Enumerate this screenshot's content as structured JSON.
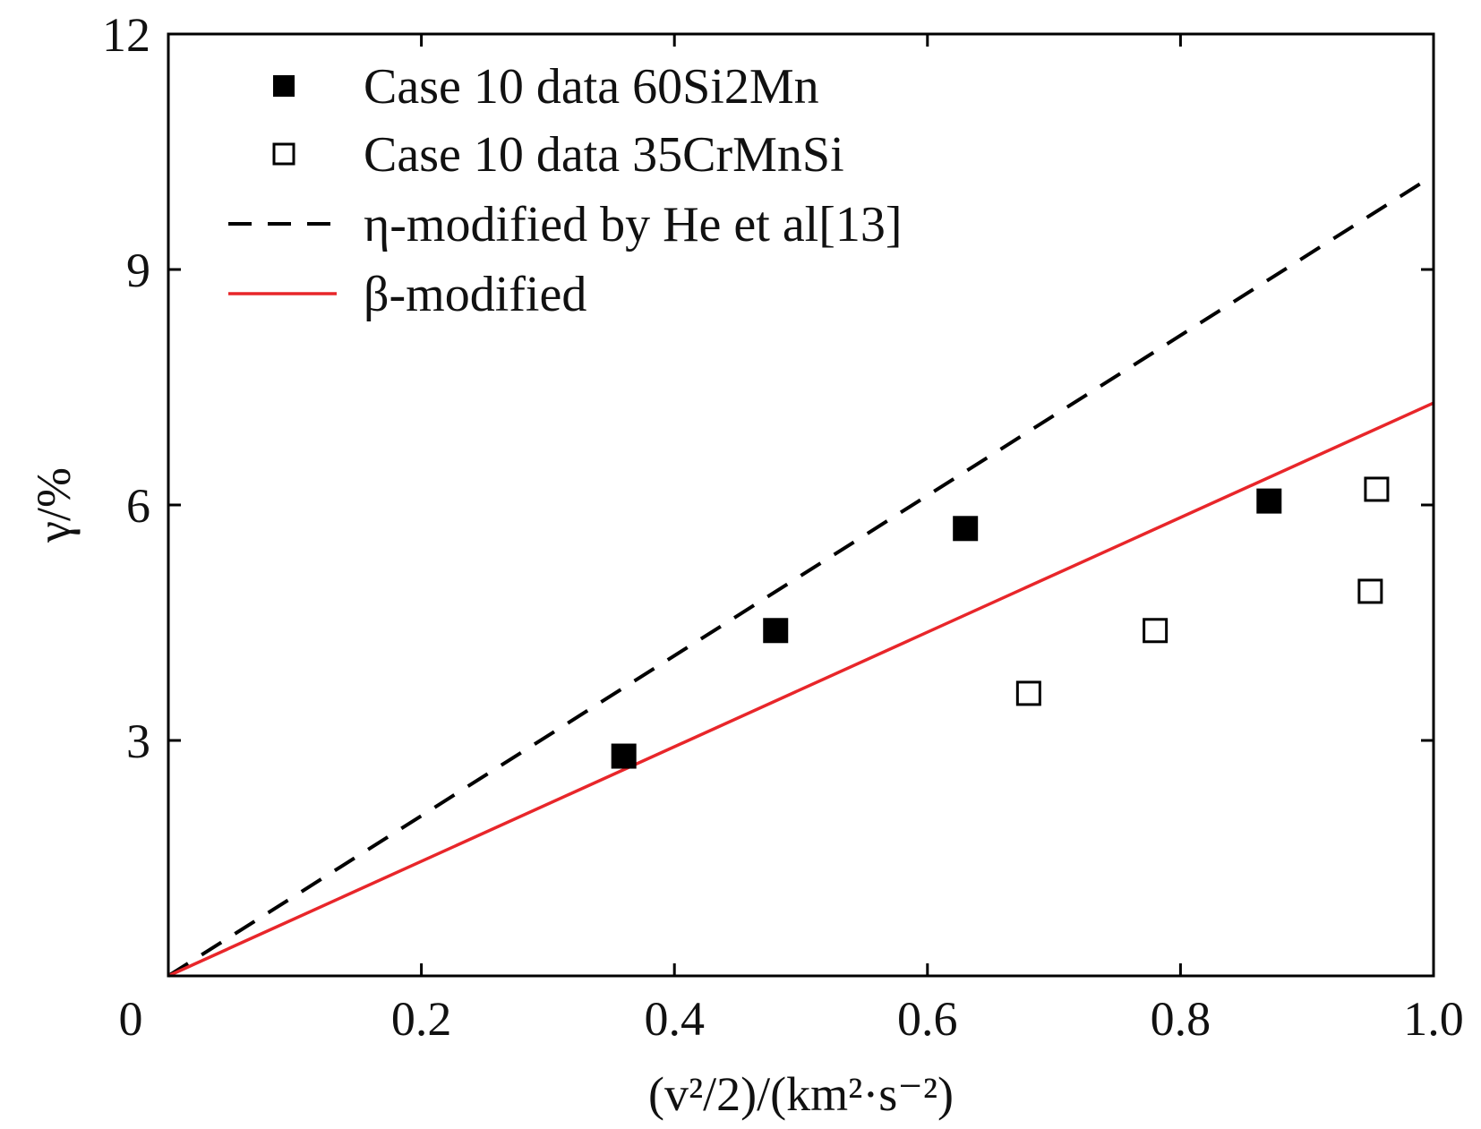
{
  "chart_data": {
    "type": "scatter",
    "title": "",
    "xlabel": "(v²/2)/(km²·s⁻²)",
    "ylabel": "γ/%",
    "xlim": [
      0,
      1.0
    ],
    "ylim": [
      0,
      12
    ],
    "x_ticks": [
      "0",
      "0.2",
      "0.4",
      "0.6",
      "0.8",
      "1.0"
    ],
    "y_ticks": [
      "3",
      "6",
      "9",
      "12"
    ],
    "legend_position": "top-left",
    "series": [
      {
        "name": "Case 10 data 60Si2Mn",
        "kind": "scatter",
        "marker": "filled-square",
        "color": "#000000",
        "x": [
          0.36,
          0.48,
          0.63,
          0.87
        ],
        "y": [
          2.8,
          4.4,
          5.7,
          6.05
        ]
      },
      {
        "name": "Case 10 data 35CrMnSi",
        "kind": "scatter",
        "marker": "open-square",
        "color": "#000000",
        "x": [
          0.68,
          0.78,
          0.95,
          0.955
        ],
        "y": [
          3.6,
          4.4,
          4.9,
          6.2
        ]
      },
      {
        "name": "η-modified by He et al[13]",
        "kind": "line",
        "style": "dashed",
        "color": "#000000",
        "x": [
          0,
          1.0
        ],
        "y": [
          0,
          10.2
        ]
      },
      {
        "name": "β-modified",
        "kind": "line",
        "style": "solid",
        "color": "#e8262a",
        "x": [
          0,
          1.0
        ],
        "y": [
          0,
          7.3
        ]
      }
    ]
  }
}
